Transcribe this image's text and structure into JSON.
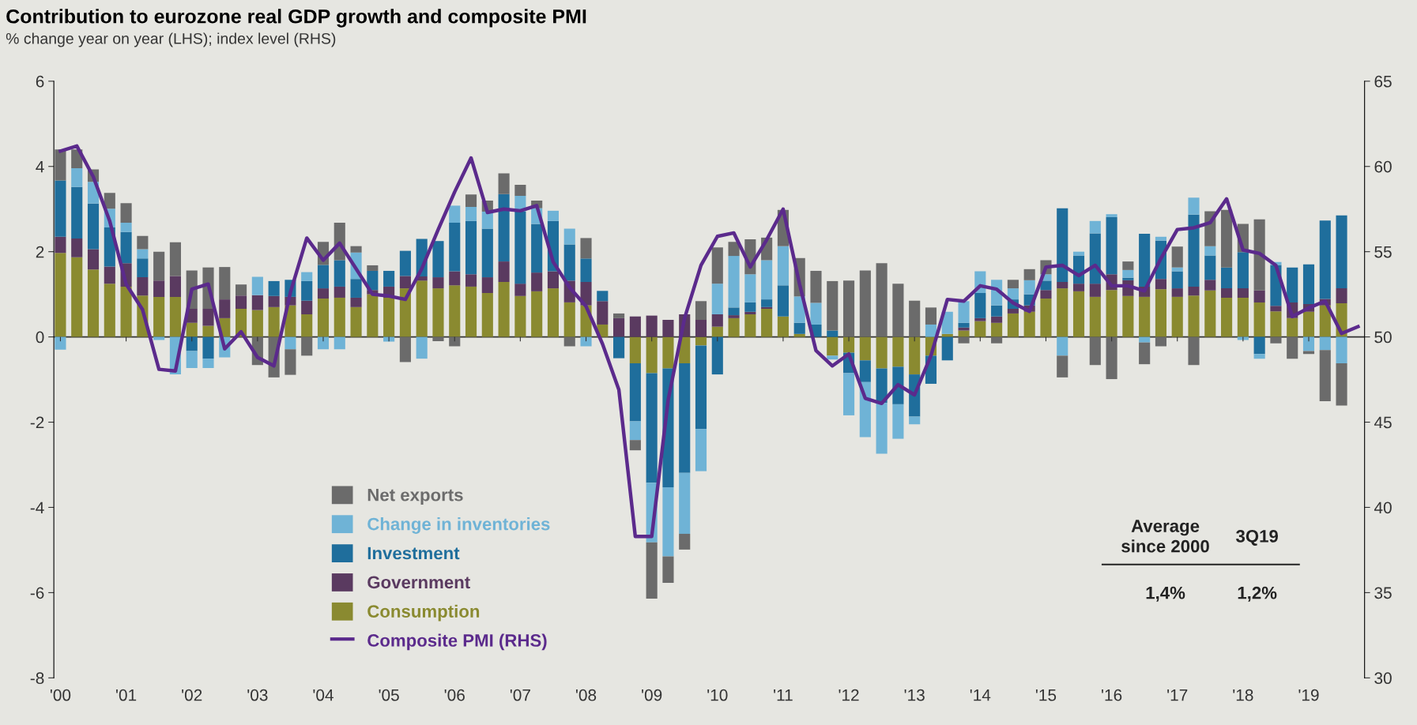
{
  "chart_data": {
    "type": "bar",
    "stacked": true,
    "title": "Contribution to eurozone real GDP growth and composite PMI",
    "subtitle": "% change year on year (LHS); index level (RHS)",
    "x": [
      2000,
      2000.25,
      2000.5,
      2000.75,
      2001,
      2001.25,
      2001.5,
      2001.75,
      2002,
      2002.25,
      2002.5,
      2002.75,
      2003,
      2003.25,
      2003.5,
      2003.75,
      2004,
      2004.25,
      2004.5,
      2004.75,
      2005,
      2005.25,
      2005.5,
      2005.75,
      2006,
      2006.25,
      2006.5,
      2006.75,
      2007,
      2007.25,
      2007.5,
      2007.75,
      2008,
      2008.25,
      2008.5,
      2008.75,
      2009,
      2009.25,
      2009.5,
      2009.75,
      2010,
      2010.25,
      2010.5,
      2010.75,
      2011,
      2011.25,
      2011.5,
      2011.75,
      2012,
      2012.25,
      2012.5,
      2012.75,
      2013,
      2013.25,
      2013.5,
      2013.75,
      2014,
      2014.25,
      2014.5,
      2014.75,
      2015,
      2015.25,
      2015.5,
      2015.75,
      2016,
      2016.25,
      2016.5,
      2016.75,
      2017,
      2017.25,
      2017.5,
      2017.75,
      2018,
      2018.25,
      2018.5,
      2018.75,
      2019,
      2019.25,
      2019.5
    ],
    "series": [
      {
        "name": "Consumption",
        "color": "#8a8a30",
        "values": [
          1.97,
          1.87,
          1.58,
          1.25,
          1.18,
          0.97,
          0.94,
          0.94,
          0.33,
          0.26,
          0.44,
          0.66,
          0.63,
          0.7,
          0.74,
          0.53,
          0.9,
          0.92,
          0.7,
          1.0,
          0.92,
          1.14,
          1.32,
          1.14,
          1.21,
          1.18,
          1.03,
          1.29,
          0.96,
          1.07,
          1.14,
          0.81,
          0.74,
          0.29,
          0,
          -0.62,
          -0.85,
          -0.74,
          -0.62,
          -0.2,
          0.24,
          0.44,
          0.53,
          0.66,
          0.48,
          0.07,
          0,
          -0.44,
          -0.37,
          -0.55,
          -0.74,
          -0.7,
          -0.88,
          -0.44,
          0.07,
          0.15,
          0.37,
          0.33,
          0.55,
          0.59,
          0.9,
          1.14,
          1.07,
          0.94,
          1.1,
          0.96,
          0.94,
          1.12,
          0.94,
          0.97,
          1.09,
          0.92,
          0.92,
          0.81,
          0.6,
          0.44,
          0.59,
          0.74,
          0.79
        ]
      },
      {
        "name": "Government",
        "color": "#5a3a60",
        "values": [
          0.38,
          0.44,
          0.48,
          0.4,
          0.55,
          0.43,
          0.38,
          0.49,
          0.33,
          0.4,
          0.44,
          0.31,
          0.35,
          0.26,
          0.2,
          0.32,
          0.24,
          0.26,
          0.22,
          0.1,
          0.26,
          0.29,
          0.1,
          0.26,
          0.33,
          0.29,
          0.37,
          0.48,
          0.29,
          0.44,
          0.4,
          0.51,
          0.55,
          0.55,
          0.44,
          0.48,
          0.5,
          0.4,
          0.53,
          0.4,
          0.29,
          0.07,
          0.06,
          0.04,
          0,
          0,
          0,
          0,
          0,
          0,
          0,
          0,
          0,
          0,
          0,
          0.07,
          0.07,
          0.15,
          0.11,
          0.15,
          0.2,
          0.15,
          0.18,
          0.31,
          0.37,
          0.37,
          0.24,
          0.24,
          0.2,
          0.21,
          0.25,
          0.22,
          0.22,
          0.28,
          0.13,
          0.37,
          0.18,
          0.15,
          0.35
        ]
      },
      {
        "name": "Investment",
        "color": "#1f6e9c",
        "values": [
          1.32,
          1.21,
          1.07,
          0.92,
          0.73,
          0.44,
          0,
          0,
          -0.33,
          -0.51,
          0,
          0,
          0,
          0.35,
          0.4,
          0.46,
          0.55,
          0.62,
          0.44,
          0.45,
          0.37,
          0.59,
          0.88,
          0.85,
          1.14,
          1.25,
          1.14,
          1.58,
          1.69,
          1.14,
          1.18,
          0.85,
          0.55,
          0.24,
          -0.5,
          -1.36,
          -2.57,
          -2.79,
          -2.57,
          -1.96,
          -0.88,
          0.18,
          0.22,
          0.18,
          0.73,
          0.26,
          0.29,
          0.15,
          -0.48,
          -0.51,
          -0.81,
          -0.88,
          -0.99,
          -0.66,
          -0.55,
          0.11,
          0.59,
          0.26,
          0.22,
          0.26,
          0.22,
          1.73,
          0.66,
          1.18,
          1.34,
          0.06,
          1.24,
          0.9,
          0.4,
          1.69,
          0.57,
          0.49,
          0.85,
          -0.4,
          0.96,
          0.82,
          0.93,
          1.84,
          1.71
        ]
      },
      {
        "name": "Change in inventories",
        "color": "#6fb3d6",
        "values": [
          -0.3,
          0.44,
          0.51,
          0.44,
          0.22,
          0.22,
          -0.07,
          -0.88,
          -0.4,
          -0.22,
          -0.48,
          0,
          0.43,
          0,
          -0.29,
          0.21,
          -0.29,
          -0.29,
          0.62,
          0,
          -0.11,
          0,
          -0.51,
          0,
          0.4,
          0.33,
          0.4,
          0,
          0.37,
          0.37,
          0.24,
          0.37,
          -0.22,
          0,
          0,
          -0.44,
          -1.4,
          -1.62,
          -1.43,
          -0.99,
          0.72,
          1.21,
          0.66,
          0.92,
          0.92,
          0.62,
          0.51,
          -0.09,
          -0.99,
          -1.29,
          -1.19,
          -0.81,
          -0.18,
          0.29,
          0.52,
          0.51,
          0.51,
          0.6,
          0.26,
          0.33,
          0.15,
          -0.44,
          0.09,
          0.29,
          0.07,
          0.18,
          -0.13,
          0.09,
          0.09,
          0.4,
          0.22,
          0,
          -0.07,
          -0.11,
          0.07,
          0,
          -0.33,
          -0.31,
          -0.62
        ]
      },
      {
        "name": "Net exports",
        "color": "#6b6b6b",
        "values": [
          0.73,
          0.44,
          0.29,
          0.37,
          0.46,
          0.31,
          0.68,
          0.79,
          0.9,
          0.97,
          0.76,
          0.26,
          -0.66,
          -0.95,
          -0.6,
          -0.44,
          0.54,
          0.88,
          0.15,
          0.13,
          0,
          -0.59,
          0,
          -0.1,
          -0.22,
          0.29,
          0.26,
          0.49,
          0.26,
          0.18,
          0,
          -0.22,
          0.48,
          0,
          0.11,
          -0.24,
          -1.32,
          -0.62,
          -0.37,
          0.44,
          0.85,
          0.33,
          0.82,
          0.53,
          0.85,
          0.9,
          0.75,
          1.16,
          1.32,
          1.56,
          1.73,
          1.25,
          0.85,
          0.4,
          0,
          -0.15,
          0,
          -0.15,
          0.2,
          0.26,
          0.33,
          -0.51,
          0,
          -0.66,
          -0.99,
          0.2,
          -0.51,
          -0.22,
          0.49,
          -0.66,
          0.82,
          1.35,
          0.66,
          1.67,
          -0.15,
          -0.51,
          -0.07,
          -1.2,
          -0.99
        ]
      },
      {
        "name": "Composite PMI (RHS)",
        "type": "line",
        "axis": "y2",
        "color": "#5b2a8c",
        "x": [
          2000,
          2000.25,
          2000.5,
          2000.75,
          2001,
          2001.25,
          2001.5,
          2001.75,
          2002,
          2002.25,
          2002.5,
          2002.75,
          2003,
          2003.25,
          2003.5,
          2003.75,
          2004,
          2004.25,
          2004.5,
          2004.75,
          2005,
          2005.25,
          2005.5,
          2005.75,
          2006,
          2006.25,
          2006.5,
          2006.75,
          2007,
          2007.25,
          2007.5,
          2007.75,
          2008,
          2008.25,
          2008.5,
          2008.75,
          2009,
          2009.25,
          2009.5,
          2009.75,
          2010,
          2010.25,
          2010.5,
          2010.75,
          2011,
          2011.25,
          2011.5,
          2011.75,
          2012,
          2012.25,
          2012.5,
          2012.75,
          2013,
          2013.25,
          2013.5,
          2013.75,
          2014,
          2014.25,
          2014.5,
          2014.75,
          2015,
          2015.25,
          2015.5,
          2015.75,
          2016,
          2016.25,
          2016.5,
          2016.75,
          2017,
          2017.25,
          2017.5,
          2017.75,
          2018,
          2018.25,
          2018.5,
          2018.75,
          2019,
          2019.25,
          2019.5,
          2019.75
        ],
        "values": [
          60.9,
          61.2,
          59.4,
          56.8,
          53.1,
          51.6,
          48.1,
          48.0,
          52.8,
          53.1,
          49.3,
          50.3,
          48.8,
          48.3,
          52.6,
          55.8,
          54.5,
          55.5,
          54.0,
          52.5,
          52.4,
          52.2,
          54.0,
          56.3,
          58.5,
          60.5,
          57.3,
          57.5,
          57.4,
          57.7,
          54.4,
          52.9,
          51.8,
          49.6,
          46.9,
          38.3,
          38.3,
          46.3,
          51.1,
          54.2,
          55.9,
          56.1,
          54.1,
          55.7,
          57.5,
          53.1,
          49.2,
          48.3,
          49.0,
          46.4,
          46.1,
          47.2,
          46.6,
          48.9,
          52.2,
          52.1,
          53.0,
          52.8,
          52.0,
          51.5,
          54.1,
          54.2,
          53.6,
          54.2,
          53.0,
          53.0,
          52.7,
          54.6,
          56.3,
          56.4,
          56.7,
          58.1,
          55.1,
          54.9,
          54.2,
          51.2,
          51.7,
          52.1,
          50.2,
          50.6
        ]
      }
    ],
    "xlim": [
      1999.9,
      2019.85
    ],
    "xticks": [
      {
        "value": 2000,
        "label": "'00"
      },
      {
        "value": 2001,
        "label": "'01"
      },
      {
        "value": 2002,
        "label": "'02"
      },
      {
        "value": 2003,
        "label": "'03"
      },
      {
        "value": 2004,
        "label": "'04"
      },
      {
        "value": 2005,
        "label": "'05"
      },
      {
        "value": 2006,
        "label": "'06"
      },
      {
        "value": 2007,
        "label": "'07"
      },
      {
        "value": 2008,
        "label": "'08"
      },
      {
        "value": 2009,
        "label": "'09"
      },
      {
        "value": 2010,
        "label": "'10"
      },
      {
        "value": 2011,
        "label": "'11"
      },
      {
        "value": 2012,
        "label": "'12"
      },
      {
        "value": 2013,
        "label": "'13"
      },
      {
        "value": 2014,
        "label": "'14"
      },
      {
        "value": 2015,
        "label": "'15"
      },
      {
        "value": 2016,
        "label": "'16"
      },
      {
        "value": 2017,
        "label": "'17"
      },
      {
        "value": 2018,
        "label": "'18"
      },
      {
        "value": 2019,
        "label": "'19"
      }
    ],
    "ylim": [
      -8,
      6
    ],
    "yticks": [
      -8,
      -6,
      -4,
      -2,
      0,
      2,
      4,
      6
    ],
    "y2lim": [
      30,
      65
    ],
    "y2ticks": [
      30,
      35,
      40,
      45,
      50,
      55,
      60,
      65
    ],
    "ref_lines": [
      {
        "axis": "y",
        "value": 0,
        "color": "#333333"
      }
    ],
    "legend": "bottom left",
    "annotations": [
      "Average\nsince 2000",
      "3Q19",
      "1,4%",
      "1,2%"
    ]
  }
}
